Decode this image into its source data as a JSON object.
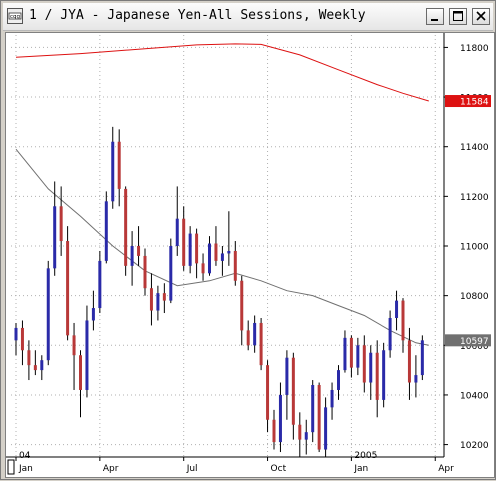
{
  "window": {
    "title": "1 / JYA - Japanese Yen-All Sessions, Weekly",
    "app_icon": "cqg-logo-icon",
    "buttons": [
      {
        "name": "minimize-button",
        "icon": "minimize-icon"
      },
      {
        "name": "maximize-button",
        "icon": "maximize-icon"
      },
      {
        "name": "close-button",
        "icon": "close-icon"
      }
    ]
  },
  "colors": {
    "up_candle": "#2a2aa8",
    "down_candle": "#b83838",
    "long_ma": "#dd1111",
    "short_ma": "#707070",
    "grid": "#b0b0b0",
    "last_price_bg": "#dd1111",
    "current_price_bg": "#707070"
  },
  "chart_data": {
    "type": "candlestick",
    "timeframe": "Weekly",
    "ylim": [
      10150,
      11850
    ],
    "y_ticks": [
      "11800",
      "11600",
      "11400",
      "11200",
      "11000",
      "10800",
      "10600",
      "10400",
      "10200"
    ],
    "y_tick_values": [
      11800,
      11600,
      11400,
      11200,
      11000,
      10800,
      10600,
      10400,
      10200
    ],
    "x_ticks": [
      {
        "label": "Jan",
        "year": "04",
        "week": 0
      },
      {
        "label": "Apr",
        "year": "",
        "week": 13
      },
      {
        "label": "Jul",
        "year": "",
        "week": 26
      },
      {
        "label": "Oct",
        "year": "",
        "week": 39
      },
      {
        "label": "Jan",
        "year": "2005",
        "week": 52
      },
      {
        "label": "Apr",
        "year": "",
        "week": 65
      }
    ],
    "price_labels": {
      "long_ma_last": "11584",
      "current": "10597"
    },
    "candles": [
      [
        10620,
        10690,
        10560,
        10670
      ],
      [
        10670,
        10700,
        10520,
        10580
      ],
      [
        10580,
        10620,
        10460,
        10520
      ],
      [
        10520,
        10580,
        10480,
        10500
      ],
      [
        10500,
        10560,
        10460,
        10540
      ],
      [
        10540,
        10940,
        10520,
        10910
      ],
      [
        10910,
        11260,
        10880,
        11160
      ],
      [
        11160,
        11240,
        10960,
        11020
      ],
      [
        11020,
        11080,
        10620,
        10640
      ],
      [
        10640,
        10690,
        10420,
        10560
      ],
      [
        10560,
        10580,
        10310,
        10420
      ],
      [
        10420,
        10760,
        10390,
        10700
      ],
      [
        10700,
        10820,
        10660,
        10750
      ],
      [
        10750,
        10980,
        10730,
        10940
      ],
      [
        10940,
        11220,
        10930,
        11180
      ],
      [
        11180,
        11480,
        11150,
        11420
      ],
      [
        11420,
        11470,
        11160,
        11230
      ],
      [
        11230,
        11240,
        10880,
        10920
      ],
      [
        10920,
        11060,
        10840,
        11000
      ],
      [
        11000,
        11080,
        10920,
        10960
      ],
      [
        10960,
        10990,
        10800,
        10830
      ],
      [
        10830,
        10890,
        10680,
        10740
      ],
      [
        10740,
        10840,
        10700,
        10810
      ],
      [
        10810,
        10850,
        10730,
        10780
      ],
      [
        10780,
        11030,
        10770,
        11000
      ],
      [
        11000,
        11240,
        10960,
        11110
      ],
      [
        11110,
        11160,
        10900,
        10920
      ],
      [
        10920,
        11080,
        10890,
        11050
      ],
      [
        11050,
        11070,
        10870,
        10930
      ],
      [
        10930,
        10970,
        10860,
        10890
      ],
      [
        10890,
        11040,
        10880,
        11010
      ],
      [
        11010,
        11080,
        10920,
        10940
      ],
      [
        10940,
        11000,
        10880,
        10970
      ],
      [
        10970,
        11140,
        10920,
        10980
      ],
      [
        10980,
        11020,
        10840,
        10860
      ],
      [
        10860,
        10880,
        10600,
        10660
      ],
      [
        10660,
        10700,
        10580,
        10600
      ],
      [
        10600,
        10720,
        10570,
        10690
      ],
      [
        10690,
        10710,
        10500,
        10520
      ],
      [
        10520,
        10540,
        10250,
        10300
      ],
      [
        10300,
        10340,
        10180,
        10210
      ],
      [
        10210,
        10450,
        10170,
        10400
      ],
      [
        10400,
        10580,
        10300,
        10550
      ],
      [
        10550,
        10570,
        10220,
        10280
      ],
      [
        10280,
        10330,
        10150,
        10220
      ],
      [
        10220,
        10300,
        10160,
        10250
      ],
      [
        10250,
        10460,
        10210,
        10440
      ],
      [
        10440,
        10450,
        10170,
        10180
      ],
      [
        10180,
        10390,
        10150,
        10350
      ],
      [
        10350,
        10450,
        10300,
        10420
      ],
      [
        10420,
        10520,
        10380,
        10500
      ],
      [
        10500,
        10660,
        10490,
        10630
      ],
      [
        10630,
        10640,
        10470,
        10510
      ],
      [
        10510,
        10630,
        10480,
        10600
      ],
      [
        10600,
        10640,
        10410,
        10450
      ],
      [
        10450,
        10600,
        10380,
        10570
      ],
      [
        10570,
        10620,
        10310,
        10380
      ],
      [
        10380,
        10610,
        10350,
        10580
      ],
      [
        10580,
        10740,
        10550,
        10710
      ],
      [
        10710,
        10820,
        10660,
        10780
      ],
      [
        10780,
        10790,
        10570,
        10620
      ],
      [
        10620,
        10670,
        10380,
        10450
      ],
      [
        10450,
        10560,
        10390,
        10480
      ],
      [
        10480,
        10640,
        10460,
        10620
      ]
    ],
    "long_ma": [
      [
        0,
        11760
      ],
      [
        10,
        11775
      ],
      [
        20,
        11795
      ],
      [
        28,
        11810
      ],
      [
        34,
        11814
      ],
      [
        38,
        11812
      ],
      [
        44,
        11770
      ],
      [
        50,
        11710
      ],
      [
        56,
        11650
      ],
      [
        60,
        11615
      ],
      [
        64,
        11584
      ]
    ],
    "short_ma": [
      [
        0,
        11390
      ],
      [
        5,
        11230
      ],
      [
        10,
        11120
      ],
      [
        15,
        11000
      ],
      [
        20,
        10900
      ],
      [
        25,
        10840
      ],
      [
        30,
        10860
      ],
      [
        34,
        10890
      ],
      [
        38,
        10860
      ],
      [
        42,
        10820
      ],
      [
        46,
        10800
      ],
      [
        50,
        10760
      ],
      [
        54,
        10720
      ],
      [
        58,
        10660
      ],
      [
        62,
        10610
      ],
      [
        64,
        10600
      ]
    ]
  }
}
